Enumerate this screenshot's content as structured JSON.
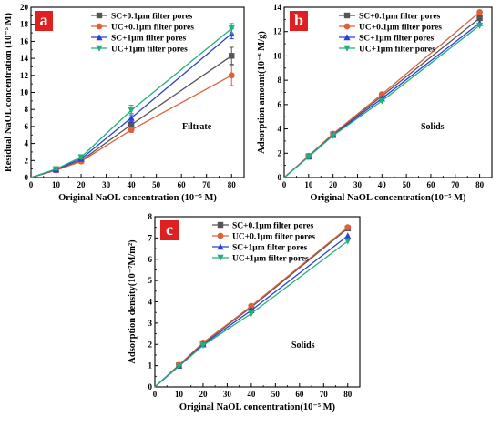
{
  "chart_data": [
    {
      "type": "line",
      "panel": "a",
      "annotation": "Filtrate",
      "xlabel": "Original NaOL concentration (10⁻⁵ M)",
      "ylabel": "Residual NaOL concentration (10⁻⁵ M)",
      "xlim": [
        0,
        85
      ],
      "ylim": [
        0,
        20
      ],
      "xticks": [
        0,
        10,
        20,
        30,
        40,
        50,
        60,
        70,
        80
      ],
      "yticks": [
        0,
        2,
        4,
        6,
        8,
        10,
        12,
        14,
        16,
        18,
        20
      ],
      "x": [
        0,
        10,
        20,
        40,
        80
      ],
      "legend_position": "top-center",
      "grid": false,
      "series": [
        {
          "name": "SC+0.1μm filter pores",
          "color": "#555555",
          "marker": "square",
          "values": [
            0,
            0.9,
            2.0,
            6.2,
            14.3
          ],
          "errors": [
            0,
            0.1,
            0.2,
            0.4,
            1.0
          ]
        },
        {
          "name": "UC+0.1μm filter pores",
          "color": "#e0603a",
          "marker": "circle",
          "values": [
            0,
            0.85,
            1.9,
            5.6,
            12.0
          ],
          "errors": [
            0,
            0.1,
            0.2,
            0.3,
            1.2
          ]
        },
        {
          "name": "SC+1μm filter pores",
          "color": "#2a3fd8",
          "marker": "triangle-up",
          "values": [
            0,
            0.95,
            2.2,
            7.0,
            16.9
          ],
          "errors": [
            0,
            0.1,
            0.2,
            0.5,
            0.6
          ]
        },
        {
          "name": "UC+1μm filter pores",
          "color": "#22b07a",
          "marker": "triangle-down",
          "values": [
            0,
            1.0,
            2.4,
            7.9,
            17.5
          ],
          "errors": [
            0,
            0.1,
            0.2,
            0.6,
            0.6
          ]
        }
      ]
    },
    {
      "type": "line",
      "panel": "b",
      "annotation": "Solids",
      "xlabel": "Original NaOL concentration(10⁻⁵ M)",
      "ylabel": "Adsorption amount(10⁻⁶ M/g)",
      "xlim": [
        0,
        85
      ],
      "ylim": [
        0,
        14
      ],
      "xticks": [
        0,
        10,
        20,
        30,
        40,
        50,
        60,
        70,
        80
      ],
      "yticks": [
        0,
        2,
        4,
        6,
        8,
        10,
        12,
        14
      ],
      "x": [
        0,
        10,
        20,
        40,
        80
      ],
      "legend_position": "top-center",
      "grid": false,
      "series": [
        {
          "name": "SC+0.1μm filter pores",
          "color": "#555555",
          "marker": "square",
          "values": [
            0,
            1.75,
            3.55,
            6.7,
            13.1
          ]
        },
        {
          "name": "UC+0.1μm filter pores",
          "color": "#e0603a",
          "marker": "circle",
          "values": [
            0,
            1.78,
            3.6,
            6.85,
            13.6
          ]
        },
        {
          "name": "SC+1μm filter pores",
          "color": "#2a3fd8",
          "marker": "triangle-up",
          "values": [
            0,
            1.72,
            3.5,
            6.5,
            12.7
          ]
        },
        {
          "name": "UC+1μm filter pores",
          "color": "#22b07a",
          "marker": "triangle-down",
          "values": [
            0,
            1.7,
            3.45,
            6.3,
            12.5
          ]
        }
      ]
    },
    {
      "type": "line",
      "panel": "c",
      "annotation": "Solids",
      "xlabel": "Original NaOL concentration(10⁻⁵ M)",
      "ylabel": "Adsorption density(10⁻⁷M/m²)",
      "xlim": [
        0,
        85
      ],
      "ylim": [
        0,
        8
      ],
      "xticks": [
        0,
        10,
        20,
        30,
        40,
        50,
        60,
        70,
        80
      ],
      "yticks": [
        0,
        1,
        2,
        3,
        4,
        5,
        6,
        7,
        8
      ],
      "x": [
        0,
        10,
        20,
        40,
        80
      ],
      "legend_position": "top-center",
      "grid": false,
      "series": [
        {
          "name": "SC+0.1μm filter pores",
          "color": "#555555",
          "marker": "square",
          "values": [
            0,
            1.02,
            2.05,
            3.75,
            7.45
          ]
        },
        {
          "name": "UC+0.1μm filter pores",
          "color": "#e0603a",
          "marker": "circle",
          "values": [
            0,
            1.03,
            2.08,
            3.8,
            7.5
          ]
        },
        {
          "name": "SC+1μm filter pores",
          "color": "#2a3fd8",
          "marker": "triangle-up",
          "values": [
            0,
            0.99,
            2.0,
            3.6,
            7.1
          ]
        },
        {
          "name": "UC+1μm filter pores",
          "color": "#22b07a",
          "marker": "triangle-down",
          "values": [
            0,
            0.97,
            1.95,
            3.45,
            6.85
          ]
        }
      ]
    }
  ],
  "colors": {
    "panel_badge": "#e02020",
    "axis": "#000000"
  }
}
